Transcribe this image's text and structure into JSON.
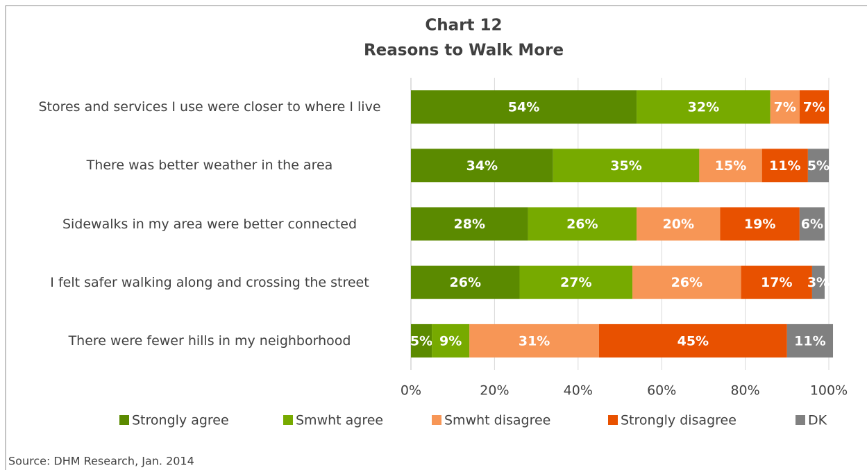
{
  "chart_data": {
    "type": "stacked-bar-horizontal",
    "title": "Chart 12",
    "subtitle": "Reasons to Walk More",
    "categories": [
      "Stores and services I use were closer to where I live",
      "There was better weather in the area",
      "Sidewalks in my area were better connected",
      "I felt safer walking along and crossing the street",
      "There were fewer hills in my neighborhood"
    ],
    "series": [
      {
        "name": "Strongly agree",
        "color": "#5b8a00",
        "values": [
          54,
          34,
          28,
          26,
          5
        ],
        "value_labels": [
          "54%",
          "34%",
          "28%",
          "26%",
          "5%"
        ]
      },
      {
        "name": "Smwht agree",
        "color": "#77aa00",
        "values": [
          32,
          35,
          26,
          27,
          9
        ],
        "value_labels": [
          "32%",
          "35%",
          "26%",
          "27%",
          "9%"
        ]
      },
      {
        "name": "Smwht disagree",
        "color": "#f79656",
        "values": [
          7,
          15,
          20,
          26,
          31
        ],
        "value_labels": [
          "7%",
          "15%",
          "20%",
          "26%",
          "31%"
        ]
      },
      {
        "name": "Strongly disagree",
        "color": "#e85100",
        "values": [
          7,
          11,
          19,
          17,
          45
        ],
        "value_labels": [
          "7%",
          "11%",
          "19%",
          "17%",
          "45%"
        ]
      },
      {
        "name": "DK",
        "color": "#808080",
        "values": [
          null,
          5,
          6,
          3,
          11
        ],
        "value_labels": [
          null,
          "5%",
          "6%",
          "3%",
          "11%"
        ]
      }
    ],
    "xlim": [
      0,
      100
    ],
    "xticks": [
      {
        "value": 0,
        "label": "0%"
      },
      {
        "value": 20,
        "label": "20%"
      },
      {
        "value": 40,
        "label": "40%"
      },
      {
        "value": 60,
        "label": "60%"
      },
      {
        "value": 80,
        "label": "80%"
      },
      {
        "value": 100,
        "label": "100%"
      }
    ],
    "grid": true,
    "legend": "bottom",
    "source": "Source: DHM Research, Jan. 2014"
  }
}
